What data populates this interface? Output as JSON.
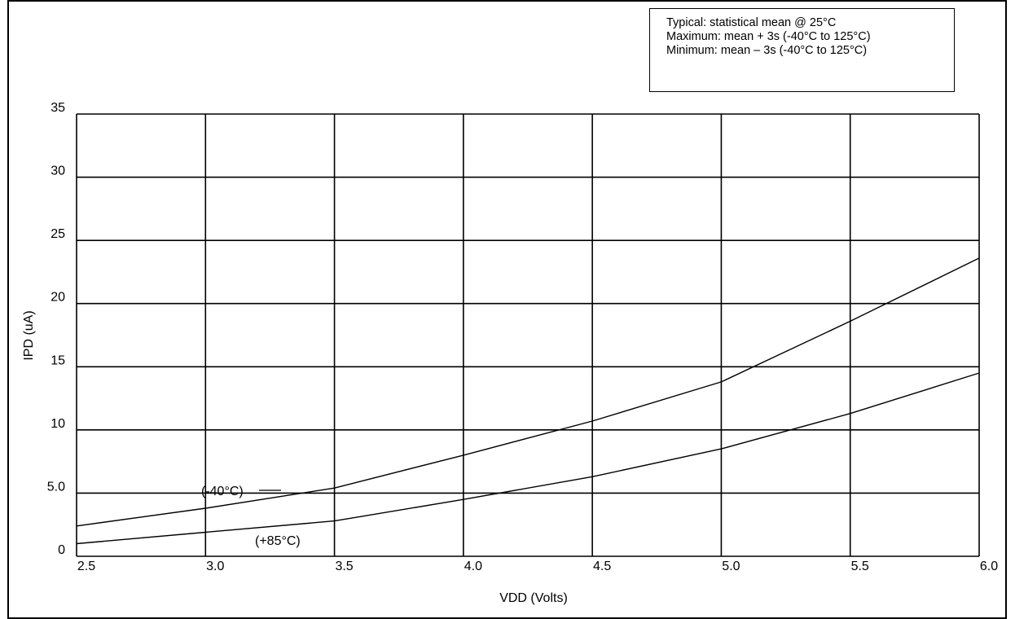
{
  "chart_data": {
    "type": "line",
    "title": "",
    "xlabel": "VDD (Volts)",
    "ylabel": "IPD (uA)",
    "xlim": [
      2.5,
      6.0
    ],
    "ylim": [
      0,
      35
    ],
    "xticks": [
      2.5,
      3.0,
      3.5,
      4.0,
      4.5,
      5.0,
      5.5,
      6.0
    ],
    "xtick_labels": [
      "2.5",
      "3.0",
      "3.5",
      "4.0",
      "4.5",
      "5.0",
      "5.5",
      "6.0"
    ],
    "yticks": [
      0,
      5,
      10,
      15,
      20,
      25,
      30,
      35
    ],
    "ytick_labels": [
      "0",
      "5.0",
      "10",
      "15",
      "20",
      "25",
      "30",
      "35"
    ],
    "grid": true,
    "legend_notes": [
      "Typical:  statistical mean @ 25°C",
      "Maximum:  mean + 3s (-40°C to 125°C)",
      "Minimum:   mean – 3s (-40°C to 125°C)"
    ],
    "series": [
      {
        "label": "(-40°C)",
        "x": [
          2.5,
          3.0,
          3.5,
          4.0,
          4.5,
          5.0,
          5.5,
          6.0
        ],
        "y": [
          2.4,
          3.8,
          5.4,
          8.0,
          10.7,
          13.8,
          18.6,
          23.6
        ]
      },
      {
        "label": "(+85°C)",
        "x": [
          2.5,
          3.0,
          3.5,
          4.0,
          4.5,
          5.0,
          5.5,
          6.0
        ],
        "y": [
          1.0,
          1.9,
          2.8,
          4.5,
          6.3,
          8.5,
          11.3,
          14.5
        ]
      }
    ]
  }
}
